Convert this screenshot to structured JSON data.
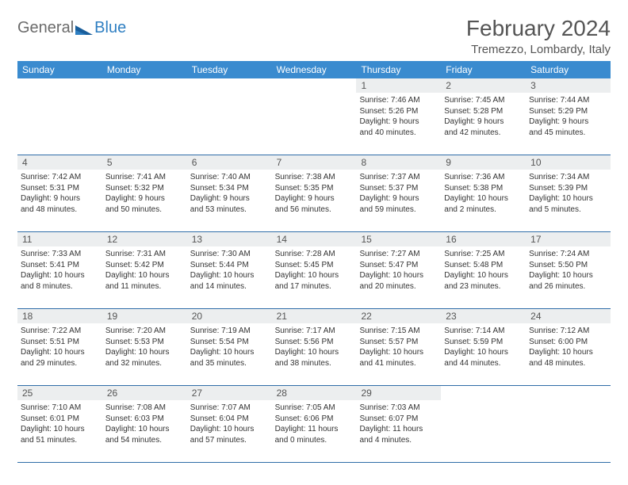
{
  "logo": {
    "part1": "General",
    "part2": "Blue"
  },
  "title": "February 2024",
  "location": "Tremezzo, Lombardy, Italy",
  "colors": {
    "header_bg": "#3a8bcf",
    "header_text": "#ffffff",
    "border": "#2f6da8",
    "daynum_bg": "#eceeef",
    "logo_blue": "#2f7fc2",
    "logo_gray": "#6b6b6b",
    "text": "#333333"
  },
  "typography": {
    "title_fontsize": 28,
    "location_fontsize": 15,
    "dayheader_fontsize": 12,
    "daynum_fontsize": 12,
    "body_fontsize": 10
  },
  "day_headers": [
    "Sunday",
    "Monday",
    "Tuesday",
    "Wednesday",
    "Thursday",
    "Friday",
    "Saturday"
  ],
  "weeks": [
    [
      {
        "blank": true
      },
      {
        "blank": true
      },
      {
        "blank": true
      },
      {
        "blank": true
      },
      {
        "n": "1",
        "sunrise": "Sunrise: 7:46 AM",
        "sunset": "Sunset: 5:26 PM",
        "day1": "Daylight: 9 hours",
        "day2": "and 40 minutes."
      },
      {
        "n": "2",
        "sunrise": "Sunrise: 7:45 AM",
        "sunset": "Sunset: 5:28 PM",
        "day1": "Daylight: 9 hours",
        "day2": "and 42 minutes."
      },
      {
        "n": "3",
        "sunrise": "Sunrise: 7:44 AM",
        "sunset": "Sunset: 5:29 PM",
        "day1": "Daylight: 9 hours",
        "day2": "and 45 minutes."
      }
    ],
    [
      {
        "n": "4",
        "sunrise": "Sunrise: 7:42 AM",
        "sunset": "Sunset: 5:31 PM",
        "day1": "Daylight: 9 hours",
        "day2": "and 48 minutes."
      },
      {
        "n": "5",
        "sunrise": "Sunrise: 7:41 AM",
        "sunset": "Sunset: 5:32 PM",
        "day1": "Daylight: 9 hours",
        "day2": "and 50 minutes."
      },
      {
        "n": "6",
        "sunrise": "Sunrise: 7:40 AM",
        "sunset": "Sunset: 5:34 PM",
        "day1": "Daylight: 9 hours",
        "day2": "and 53 minutes."
      },
      {
        "n": "7",
        "sunrise": "Sunrise: 7:38 AM",
        "sunset": "Sunset: 5:35 PM",
        "day1": "Daylight: 9 hours",
        "day2": "and 56 minutes."
      },
      {
        "n": "8",
        "sunrise": "Sunrise: 7:37 AM",
        "sunset": "Sunset: 5:37 PM",
        "day1": "Daylight: 9 hours",
        "day2": "and 59 minutes."
      },
      {
        "n": "9",
        "sunrise": "Sunrise: 7:36 AM",
        "sunset": "Sunset: 5:38 PM",
        "day1": "Daylight: 10 hours",
        "day2": "and 2 minutes."
      },
      {
        "n": "10",
        "sunrise": "Sunrise: 7:34 AM",
        "sunset": "Sunset: 5:39 PM",
        "day1": "Daylight: 10 hours",
        "day2": "and 5 minutes."
      }
    ],
    [
      {
        "n": "11",
        "sunrise": "Sunrise: 7:33 AM",
        "sunset": "Sunset: 5:41 PM",
        "day1": "Daylight: 10 hours",
        "day2": "and 8 minutes."
      },
      {
        "n": "12",
        "sunrise": "Sunrise: 7:31 AM",
        "sunset": "Sunset: 5:42 PM",
        "day1": "Daylight: 10 hours",
        "day2": "and 11 minutes."
      },
      {
        "n": "13",
        "sunrise": "Sunrise: 7:30 AM",
        "sunset": "Sunset: 5:44 PM",
        "day1": "Daylight: 10 hours",
        "day2": "and 14 minutes."
      },
      {
        "n": "14",
        "sunrise": "Sunrise: 7:28 AM",
        "sunset": "Sunset: 5:45 PM",
        "day1": "Daylight: 10 hours",
        "day2": "and 17 minutes."
      },
      {
        "n": "15",
        "sunrise": "Sunrise: 7:27 AM",
        "sunset": "Sunset: 5:47 PM",
        "day1": "Daylight: 10 hours",
        "day2": "and 20 minutes."
      },
      {
        "n": "16",
        "sunrise": "Sunrise: 7:25 AM",
        "sunset": "Sunset: 5:48 PM",
        "day1": "Daylight: 10 hours",
        "day2": "and 23 minutes."
      },
      {
        "n": "17",
        "sunrise": "Sunrise: 7:24 AM",
        "sunset": "Sunset: 5:50 PM",
        "day1": "Daylight: 10 hours",
        "day2": "and 26 minutes."
      }
    ],
    [
      {
        "n": "18",
        "sunrise": "Sunrise: 7:22 AM",
        "sunset": "Sunset: 5:51 PM",
        "day1": "Daylight: 10 hours",
        "day2": "and 29 minutes."
      },
      {
        "n": "19",
        "sunrise": "Sunrise: 7:20 AM",
        "sunset": "Sunset: 5:53 PM",
        "day1": "Daylight: 10 hours",
        "day2": "and 32 minutes."
      },
      {
        "n": "20",
        "sunrise": "Sunrise: 7:19 AM",
        "sunset": "Sunset: 5:54 PM",
        "day1": "Daylight: 10 hours",
        "day2": "and 35 minutes."
      },
      {
        "n": "21",
        "sunrise": "Sunrise: 7:17 AM",
        "sunset": "Sunset: 5:56 PM",
        "day1": "Daylight: 10 hours",
        "day2": "and 38 minutes."
      },
      {
        "n": "22",
        "sunrise": "Sunrise: 7:15 AM",
        "sunset": "Sunset: 5:57 PM",
        "day1": "Daylight: 10 hours",
        "day2": "and 41 minutes."
      },
      {
        "n": "23",
        "sunrise": "Sunrise: 7:14 AM",
        "sunset": "Sunset: 5:59 PM",
        "day1": "Daylight: 10 hours",
        "day2": "and 44 minutes."
      },
      {
        "n": "24",
        "sunrise": "Sunrise: 7:12 AM",
        "sunset": "Sunset: 6:00 PM",
        "day1": "Daylight: 10 hours",
        "day2": "and 48 minutes."
      }
    ],
    [
      {
        "n": "25",
        "sunrise": "Sunrise: 7:10 AM",
        "sunset": "Sunset: 6:01 PM",
        "day1": "Daylight: 10 hours",
        "day2": "and 51 minutes."
      },
      {
        "n": "26",
        "sunrise": "Sunrise: 7:08 AM",
        "sunset": "Sunset: 6:03 PM",
        "day1": "Daylight: 10 hours",
        "day2": "and 54 minutes."
      },
      {
        "n": "27",
        "sunrise": "Sunrise: 7:07 AM",
        "sunset": "Sunset: 6:04 PM",
        "day1": "Daylight: 10 hours",
        "day2": "and 57 minutes."
      },
      {
        "n": "28",
        "sunrise": "Sunrise: 7:05 AM",
        "sunset": "Sunset: 6:06 PM",
        "day1": "Daylight: 11 hours",
        "day2": "and 0 minutes."
      },
      {
        "n": "29",
        "sunrise": "Sunrise: 7:03 AM",
        "sunset": "Sunset: 6:07 PM",
        "day1": "Daylight: 11 hours",
        "day2": "and 4 minutes."
      },
      {
        "blank": true
      },
      {
        "blank": true
      }
    ]
  ]
}
